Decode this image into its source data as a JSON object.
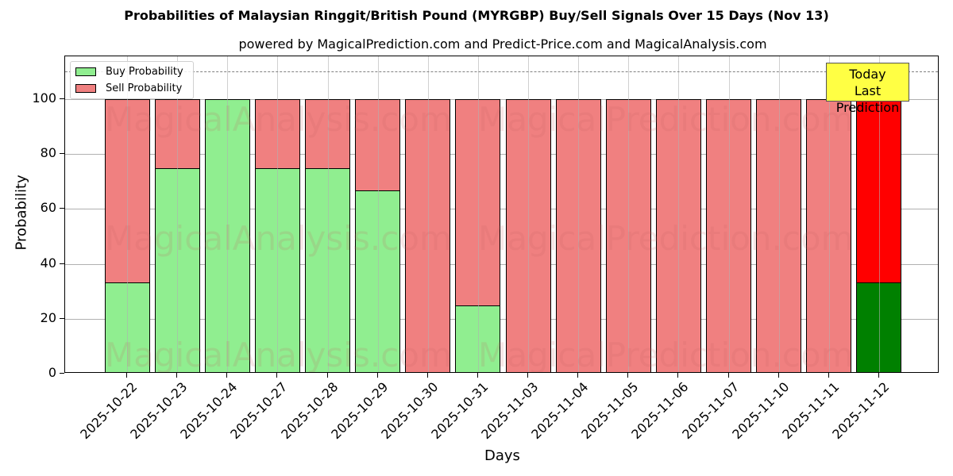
{
  "title": "Probabilities of Malaysian Ringgit/British Pound (MYRGBP) Buy/Sell Signals Over 15 Days (Nov 13)",
  "subtitle": "powered by MagicalPrediction.com and Predict-Price.com and MagicalAnalysis.com",
  "legend": {
    "buy": "Buy Probability",
    "sell": "Sell Probability"
  },
  "annotation": {
    "line1": "Today",
    "line2": "Last Prediction"
  },
  "watermarks": [
    "MagicalAnalysis.com",
    "MagicalPrediction.com"
  ],
  "colors": {
    "buy": "#90ee90",
    "sell": "#f08080",
    "buy_today": "#008000",
    "sell_today": "#ff0000",
    "annotation_bg": "#ffff44"
  },
  "chart_data": {
    "type": "bar",
    "stacked": true,
    "title": "Probabilities of Malaysian Ringgit/British Pound (MYRGBP) Buy/Sell Signals Over 15 Days (Nov 13)",
    "subtitle": "powered by MagicalPrediction.com and Predict-Price.com and MagicalAnalysis.com",
    "xlabel": "Days",
    "ylabel": "Probability",
    "ylim": [
      0,
      115
    ],
    "yticks": [
      0,
      20,
      40,
      60,
      80,
      100
    ],
    "grid": true,
    "legend_position": "upper left",
    "reference_line": {
      "y": 110,
      "style": "dashed",
      "color": "#808080"
    },
    "categories": [
      "2025-10-22",
      "2025-10-23",
      "2025-10-24",
      "2025-10-27",
      "2025-10-28",
      "2025-10-29",
      "2025-10-30",
      "2025-10-31",
      "2025-11-03",
      "2025-11-04",
      "2025-11-05",
      "2025-11-06",
      "2025-11-07",
      "2025-11-10",
      "2025-11-11",
      "2025-11-12"
    ],
    "series": [
      {
        "name": "Buy Probability",
        "values": [
          33.33,
          75,
          100,
          75,
          75,
          66.67,
          0,
          25,
          0,
          0,
          0,
          0,
          0,
          0,
          0,
          33.33
        ]
      },
      {
        "name": "Sell Probability",
        "values": [
          66.67,
          25,
          0,
          25,
          25,
          33.33,
          100,
          75,
          100,
          100,
          100,
          100,
          100,
          100,
          100,
          66.67
        ]
      }
    ],
    "annotation": "Today\nLast Prediction"
  }
}
